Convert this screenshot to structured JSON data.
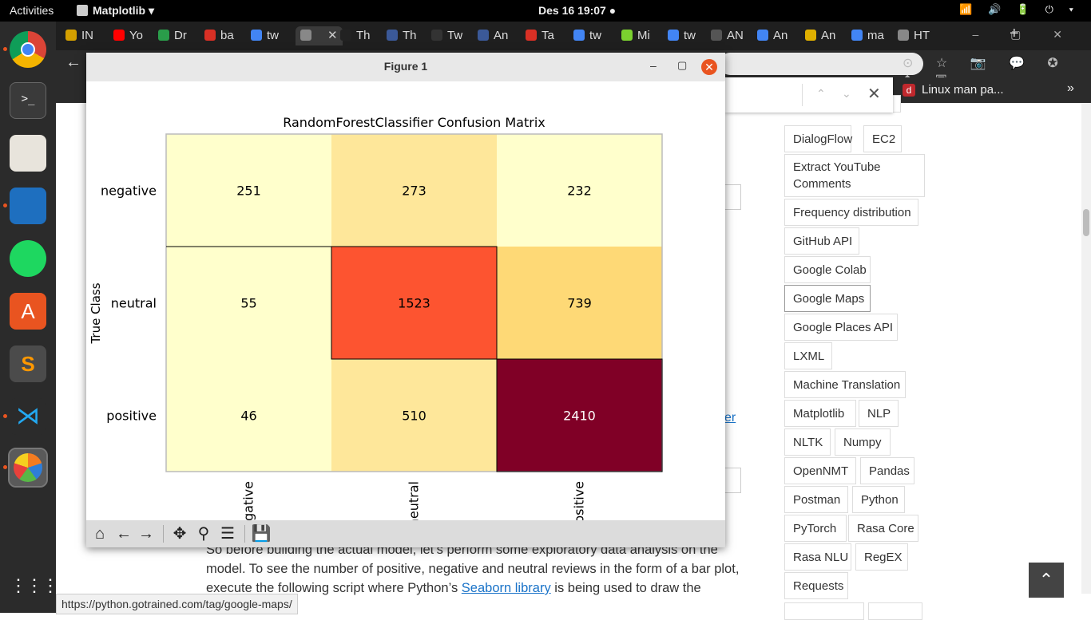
{
  "system_bar": {
    "activities": "Activities",
    "app_name": "Matplotlib ▾",
    "clock": "Des 16  19:07 ●",
    "tray": "📶 🔊 🔋 ⏻ ▾"
  },
  "dock": {
    "items": [
      "chrome-icon",
      "terminal-icon",
      "files-icon",
      "writer-icon",
      "spotify-icon",
      "software-icon",
      "sublime-icon",
      "vscode-icon",
      "matplotlib-icon",
      "app-grid-icon"
    ],
    "apps_grid": "⋮⋮⋮"
  },
  "browser": {
    "tabs": [
      {
        "label": "IN",
        "color": "#d4a000"
      },
      {
        "label": "Yo",
        "color": "#ff0000"
      },
      {
        "label": "Dr",
        "color": "#2a9d4a"
      },
      {
        "label": "ba",
        "color": "#d93025"
      },
      {
        "label": "tw",
        "color": "#4285f4"
      },
      {
        "label": "",
        "color": "#888888",
        "active": true
      },
      {
        "label": "Th",
        "color": "#222222"
      },
      {
        "label": "Th",
        "color": "#3b5998"
      },
      {
        "label": "Tw",
        "color": "#333333"
      },
      {
        "label": "An",
        "color": "#3b5998"
      },
      {
        "label": "Ta",
        "color": "#d93025"
      },
      {
        "label": "tw",
        "color": "#4285f4"
      },
      {
        "label": "Mi",
        "color": "#7bd12f"
      },
      {
        "label": "tw",
        "color": "#4285f4"
      },
      {
        "label": "AN",
        "color": "#555555"
      },
      {
        "label": "An",
        "color": "#4285f4"
      },
      {
        "label": "An",
        "color": "#e0b000"
      },
      {
        "label": "ma",
        "color": "#4285f4"
      },
      {
        "label": "HT",
        "color": "#888888"
      }
    ],
    "new_tab": "+",
    "window_controls": "– ▢ ✕",
    "back": "←",
    "extensions": "⊙ ☆ 📷 💬 ✪ ◆ ▣",
    "bookmark_linux": "Linux man pa...",
    "bookmark_linux_icon": "d",
    "bookmark_more": "»",
    "find_up": "⌃",
    "find_down": "⌄",
    "find_close": "✕"
  },
  "page": {
    "tags": [
      {
        "label": "DialogFlow"
      },
      {
        "label": "EC2"
      },
      {
        "label": "Extract YouTube\nComments"
      },
      {
        "label": "Frequency distribution"
      },
      {
        "label": "GitHub API"
      },
      {
        "label": "Google Colab"
      },
      {
        "label": "Google Maps"
      },
      {
        "label": "Google Places API"
      },
      {
        "label": "LXML"
      },
      {
        "label": "Machine Translation"
      },
      {
        "label": "Matplotlib"
      },
      {
        "label": "NLP"
      },
      {
        "label": "NLTK"
      },
      {
        "label": "Numpy"
      },
      {
        "label": "OpenNMT"
      },
      {
        "label": "Pandas"
      },
      {
        "label": "Postman"
      },
      {
        "label": "Python"
      },
      {
        "label": "PyTorch"
      },
      {
        "label": "Rasa Core"
      },
      {
        "label": "Rasa NLU"
      },
      {
        "label": "RegEX"
      },
      {
        "label": "Requests"
      }
    ],
    "paragraph_before": "So before building the actual model, let’s perform some exploratory data analysis on the model. To see the number of positive, negative and neutral reviews in the form of a bar plot, execute the following script where Python’s ",
    "paragraph_link": "Seaborn library",
    "paragraph_after": " is being used to draw  the",
    "fragment_link": "er",
    "back_to_top": "⌃",
    "status_url": "https://python.gotrained.com/tag/google-maps/"
  },
  "figure": {
    "window_title": "Figure 1",
    "minimize": "–",
    "maximize": "▢",
    "close": "✕",
    "toolbar": [
      {
        "name": "home-icon",
        "glyph": "⌂"
      },
      {
        "name": "back-icon",
        "glyph": "←"
      },
      {
        "name": "forward-icon",
        "glyph": "→"
      },
      {
        "name": "pan-icon",
        "glyph": "✥"
      },
      {
        "name": "zoom-icon",
        "glyph": "⚲"
      },
      {
        "name": "configure-icon",
        "glyph": "☰"
      },
      {
        "name": "save-icon",
        "glyph": "💾"
      }
    ]
  },
  "chart_data": {
    "type": "heatmap",
    "title": "RandomForestClassifier Confusion Matrix",
    "ylabel": "True Class",
    "xlabel": "",
    "rows": [
      "negative",
      "neutral",
      "positive"
    ],
    "columns": [
      "negative",
      "neutral",
      "positive"
    ],
    "x_tick_labels_visible": [
      "egative",
      "neutral",
      "ositive"
    ],
    "values": [
      [
        251,
        273,
        232
      ],
      [
        55,
        1523,
        739
      ],
      [
        46,
        510,
        2410
      ]
    ],
    "cell_colors": [
      [
        "#ffffcc",
        "#fee79a",
        "#ffffcc"
      ],
      [
        "#ffffcc",
        "#fd5430",
        "#fed976"
      ],
      [
        "#ffffcc",
        "#fee79a",
        "#800026"
      ]
    ],
    "text_colors": [
      [
        "#000000",
        "#000000",
        "#000000"
      ],
      [
        "#000000",
        "#000000",
        "#000000"
      ],
      [
        "#000000",
        "#000000",
        "#ffffff"
      ]
    ],
    "highlighted_cells": [
      [
        1,
        1
      ],
      [
        2,
        2
      ]
    ],
    "colormap": "YlOrRd"
  }
}
